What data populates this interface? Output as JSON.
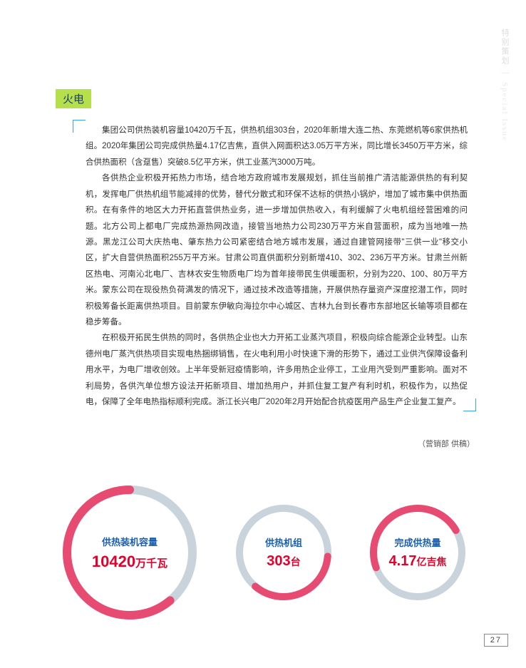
{
  "sidebar": {
    "cn": "特别策划",
    "divider": "｜",
    "en": "Special Issue"
  },
  "section_tag": "火电",
  "paragraphs": [
    "集团公司供热装机容量10420万千瓦，供热机组303台，2020年新增大连二热、东莞燃机等6家供热机组。2020年集团公司完成供热量4.17亿吉焦，直供入网面积达3.05万平方米，同比增长3450万平方米，综合供热面积（含趸售）突破8.5亿平方米，供工业蒸汽3000万吨。",
    "各供热企业积极开拓热力市场，结合地方政府城市发展规划，抓住当前推广清洁能源供热的有利契机，发挥电厂供热机组节能减排的优势，替代分散式和环保不达标的供热小锅炉，增加了城市集中供热面积。在有条件的地区大力开拓直营供热业务，进一步增加供热收入，有利缓解了火电机组经营困难的问题。北方公司上都电厂完成热源热网改造，接管当地热力公司230万平方米自营面积，成为当地唯一热源。黑龙江公司大庆热电、肇东热力公司紧密结合地方城市发展，通过自建管网接带\"三供一业\"移交小区，扩大自营供热面积255万平方米。甘肃公司直供面积分别新增410、302、236万平方米。甘肃兰州新区热电、河南沁北电厂、吉林农安生物质电厂均为首年接带民生供暖面积，分别为220、100、80万平方米。蒙东公司在现役热负荷满发的情况下，通过技术改造等措施，开展供热存量资产深度挖潜工作，同时积极筹备长距离供热项目。目前蒙东伊敏向海拉尔中心城区、吉林九台到长春市东部地区长输等项目都在稳步筹备。",
    "在积极开拓民生供热的同时，各供热企业也大力开拓工业蒸汽项目，积极向综合能源企业转型。山东德州电厂蒸汽供热项目实现电热捆绑销售，在火电利用小时快速下滑的形势下，通过工业供汽保障设备利用水平，为电厂增收创效。上半年受新冠疫情影响，许多用热企业停工，工业用汽受到严重影响。面对不利局势，各供汽单位想方设法开拓新项目、增加热用户，并抓住复工复产有利时机，积极作为，以热促电，保障了全年电热指标顺利完成。浙江长兴电厂2020年2月开始配合抗疫医用产品生产企业复工复产。"
  ],
  "credit": "（营销部  供稿）",
  "stats": [
    {
      "label": "供热装机容量",
      "value": "10420",
      "unit": "万千瓦",
      "value_size": 22,
      "unit_size": 15,
      "ring_r": 88,
      "arc_color": "#e84b72",
      "base_color": "#c9d3dc",
      "stroke": 12,
      "arc_start": 140,
      "arc_end": 360
    },
    {
      "label": "供热机组",
      "value": "303",
      "unit": "台",
      "value_size": 20,
      "unit_size": 14,
      "ring_r": 62,
      "arc_color": "#e84b72",
      "base_color": "#c9d3dc",
      "stroke": 10,
      "arc_start": 95,
      "arc_end": 220
    },
    {
      "label": "完成供热量",
      "value": "4.17",
      "unit": "亿吉焦",
      "value_size": 20,
      "unit_size": 14,
      "ring_r": 62,
      "arc_color": "#e84b72",
      "base_color": "#c9d3dc",
      "stroke": 10,
      "arc_start": 250,
      "arc_end": 420
    }
  ],
  "page_number": "27",
  "colors": {
    "accent_blue": "#3aa5e6",
    "tag_bg": "#b5e04a",
    "stat_label": "#1a5fb0",
    "stat_value": "#e4002b"
  }
}
